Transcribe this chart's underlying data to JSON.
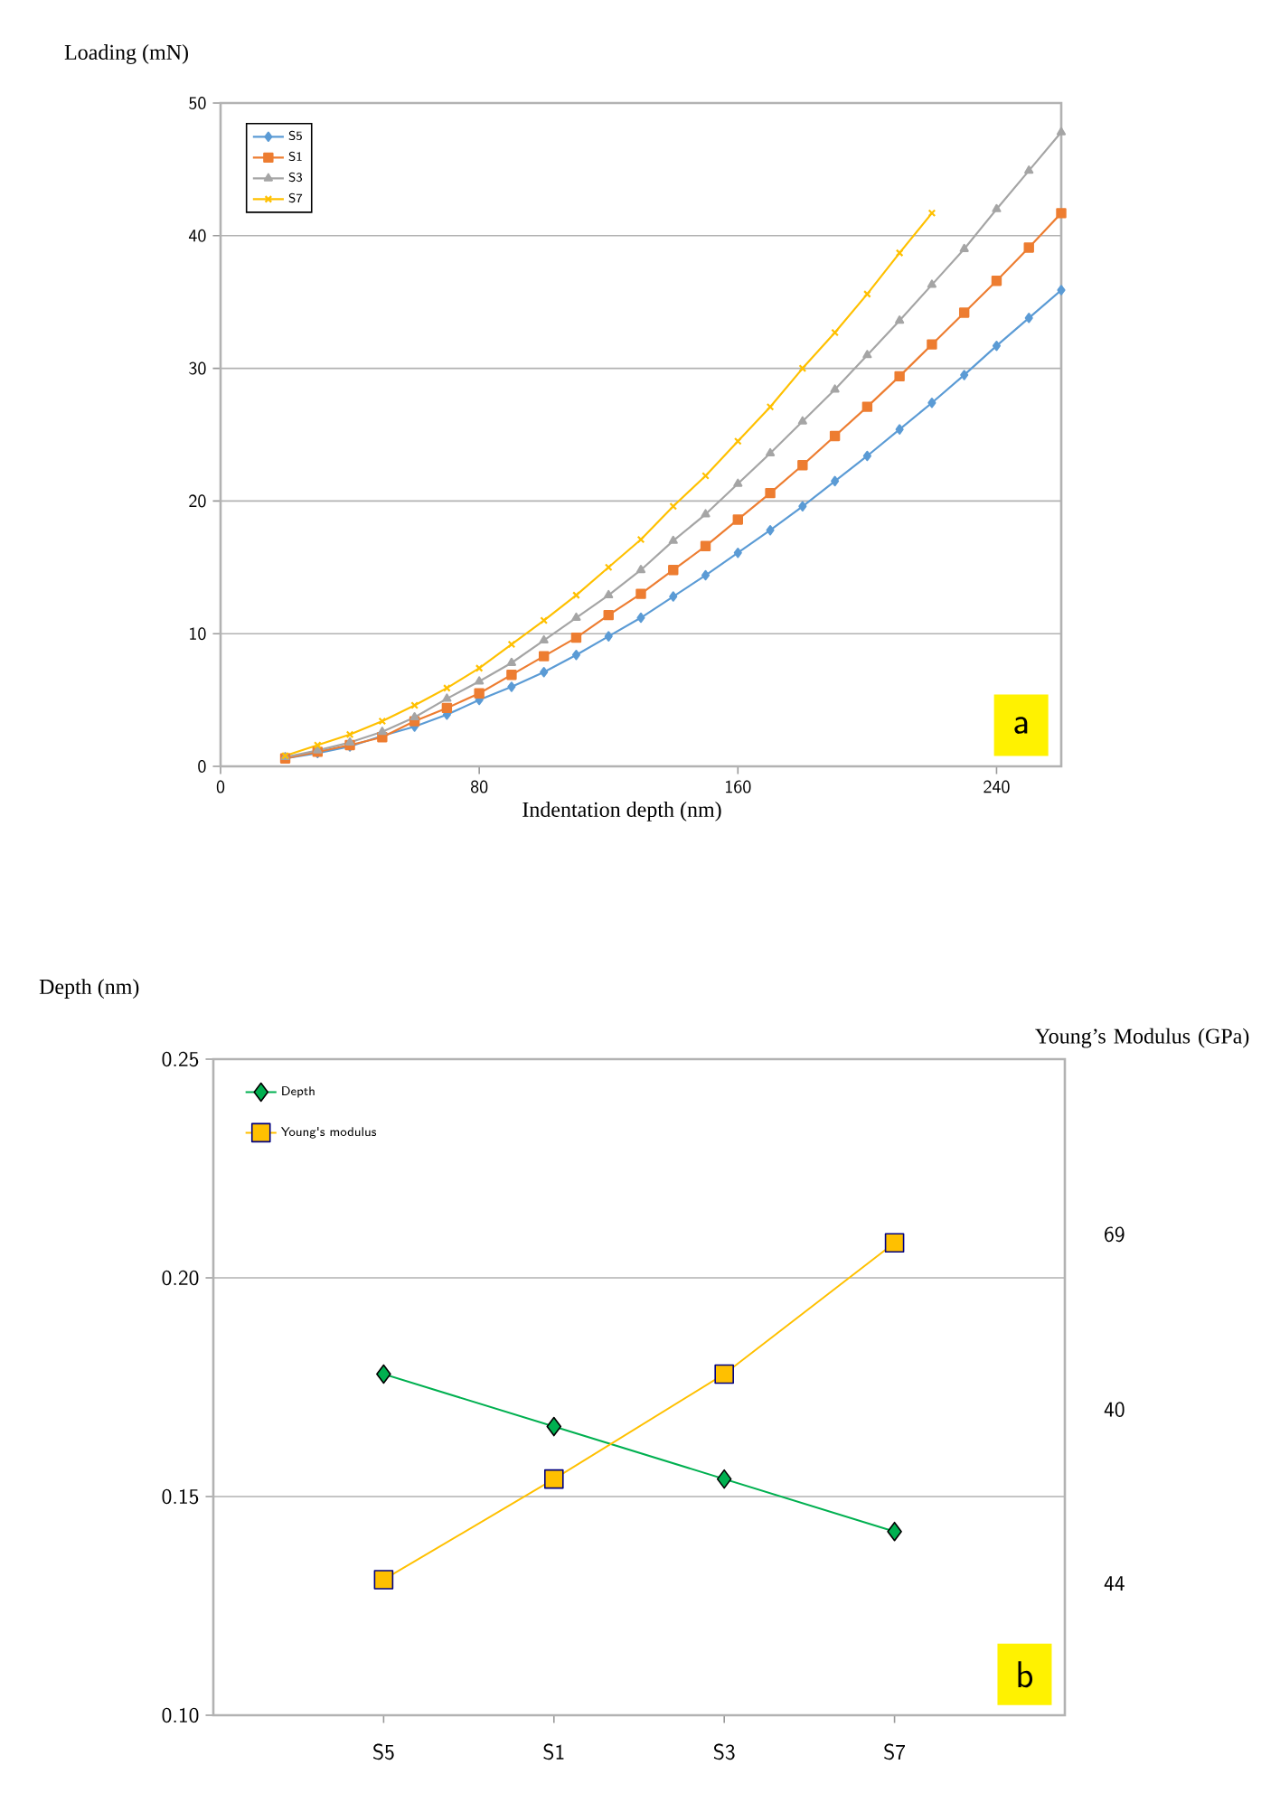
{
  "chart_data": [
    {
      "type": "line",
      "xlabel": "Indentation depth (nm)",
      "ylabel": "Loading (mN)",
      "xlim": [
        0,
        260
      ],
      "xticks": [
        0,
        80,
        160,
        240
      ],
      "ylim": [
        0,
        50
      ],
      "yticks": [
        0,
        10,
        20,
        30,
        40,
        50
      ],
      "grid": "y",
      "legend": "top left",
      "line_style": "solid",
      "annotations": [
        "a"
      ],
      "x": [
        20,
        30,
        40,
        50,
        60,
        70,
        80,
        90,
        100,
        110,
        120,
        130,
        140,
        150,
        160,
        170,
        180,
        190,
        200,
        210,
        220,
        230,
        240,
        250,
        260
      ],
      "series": [
        {
          "name": "S5",
          "color": "#5b9bd5",
          "marker": "diamond",
          "values": [
            0.6,
            1.0,
            1.5,
            2.3,
            3.0,
            3.9,
            5.0,
            6.0,
            7.1,
            8.4,
            9.8,
            11.2,
            12.8,
            14.4,
            16.1,
            17.8,
            19.6,
            21.5,
            23.4,
            25.4,
            27.4,
            29.5,
            31.7,
            33.8,
            35.9
          ]
        },
        {
          "name": "S1",
          "color": "#ed7d31",
          "marker": "square",
          "values": [
            0.6,
            1.1,
            1.6,
            2.2,
            3.4,
            4.4,
            5.5,
            6.9,
            8.3,
            9.7,
            11.4,
            13.0,
            14.8,
            16.6,
            18.6,
            20.6,
            22.7,
            24.9,
            27.1,
            29.4,
            31.8,
            34.2,
            36.6,
            39.1,
            41.7
          ]
        },
        {
          "name": "S3",
          "color": "#a5a5a5",
          "marker": "triangle",
          "values": [
            0.7,
            1.2,
            1.8,
            2.6,
            3.7,
            5.1,
            6.4,
            7.8,
            9.5,
            11.2,
            12.9,
            14.8,
            17.0,
            19.0,
            21.3,
            23.6,
            26.0,
            28.4,
            31.0,
            33.6,
            36.3,
            39.0,
            42.0,
            44.9,
            47.8
          ]
        },
        {
          "name": "S7",
          "color": "#ffc000",
          "marker": "cross",
          "values": [
            0.8,
            1.6,
            2.4,
            3.4,
            4.6,
            5.9,
            7.4,
            9.2,
            11.0,
            12.9,
            15.0,
            17.1,
            19.6,
            21.9,
            24.5,
            27.1,
            30.0,
            32.7,
            35.6,
            38.7,
            41.7,
            null,
            null,
            null,
            null
          ]
        }
      ]
    },
    {
      "type": "line",
      "ylabel": "Depth (nm)",
      "y2label": "Young’s Modulus (GPa)",
      "categories": [
        "S5",
        "S1",
        "S3",
        "S7"
      ],
      "ylim": [
        0.1,
        0.25
      ],
      "yticks": [
        {
          "value": 0.1,
          "label": "0.10"
        },
        0.15,
        {
          "value": 0.2,
          "label": "0.20"
        },
        0.25
      ],
      "grid": "y",
      "legend": "top left",
      "line_style": "solid",
      "annotations": [
        "69",
        "40",
        "44",
        "b"
      ],
      "series": [
        {
          "name": "Depth",
          "color": "#00b050",
          "marker": "diamond",
          "values": [
            0.178,
            0.166,
            0.154,
            0.142
          ]
        },
        {
          "name": "Young's modulus",
          "color": "#ffc000",
          "marker": "square",
          "values": [
            0.131,
            0.154,
            0.178,
            0.208
          ]
        }
      ]
    }
  ]
}
